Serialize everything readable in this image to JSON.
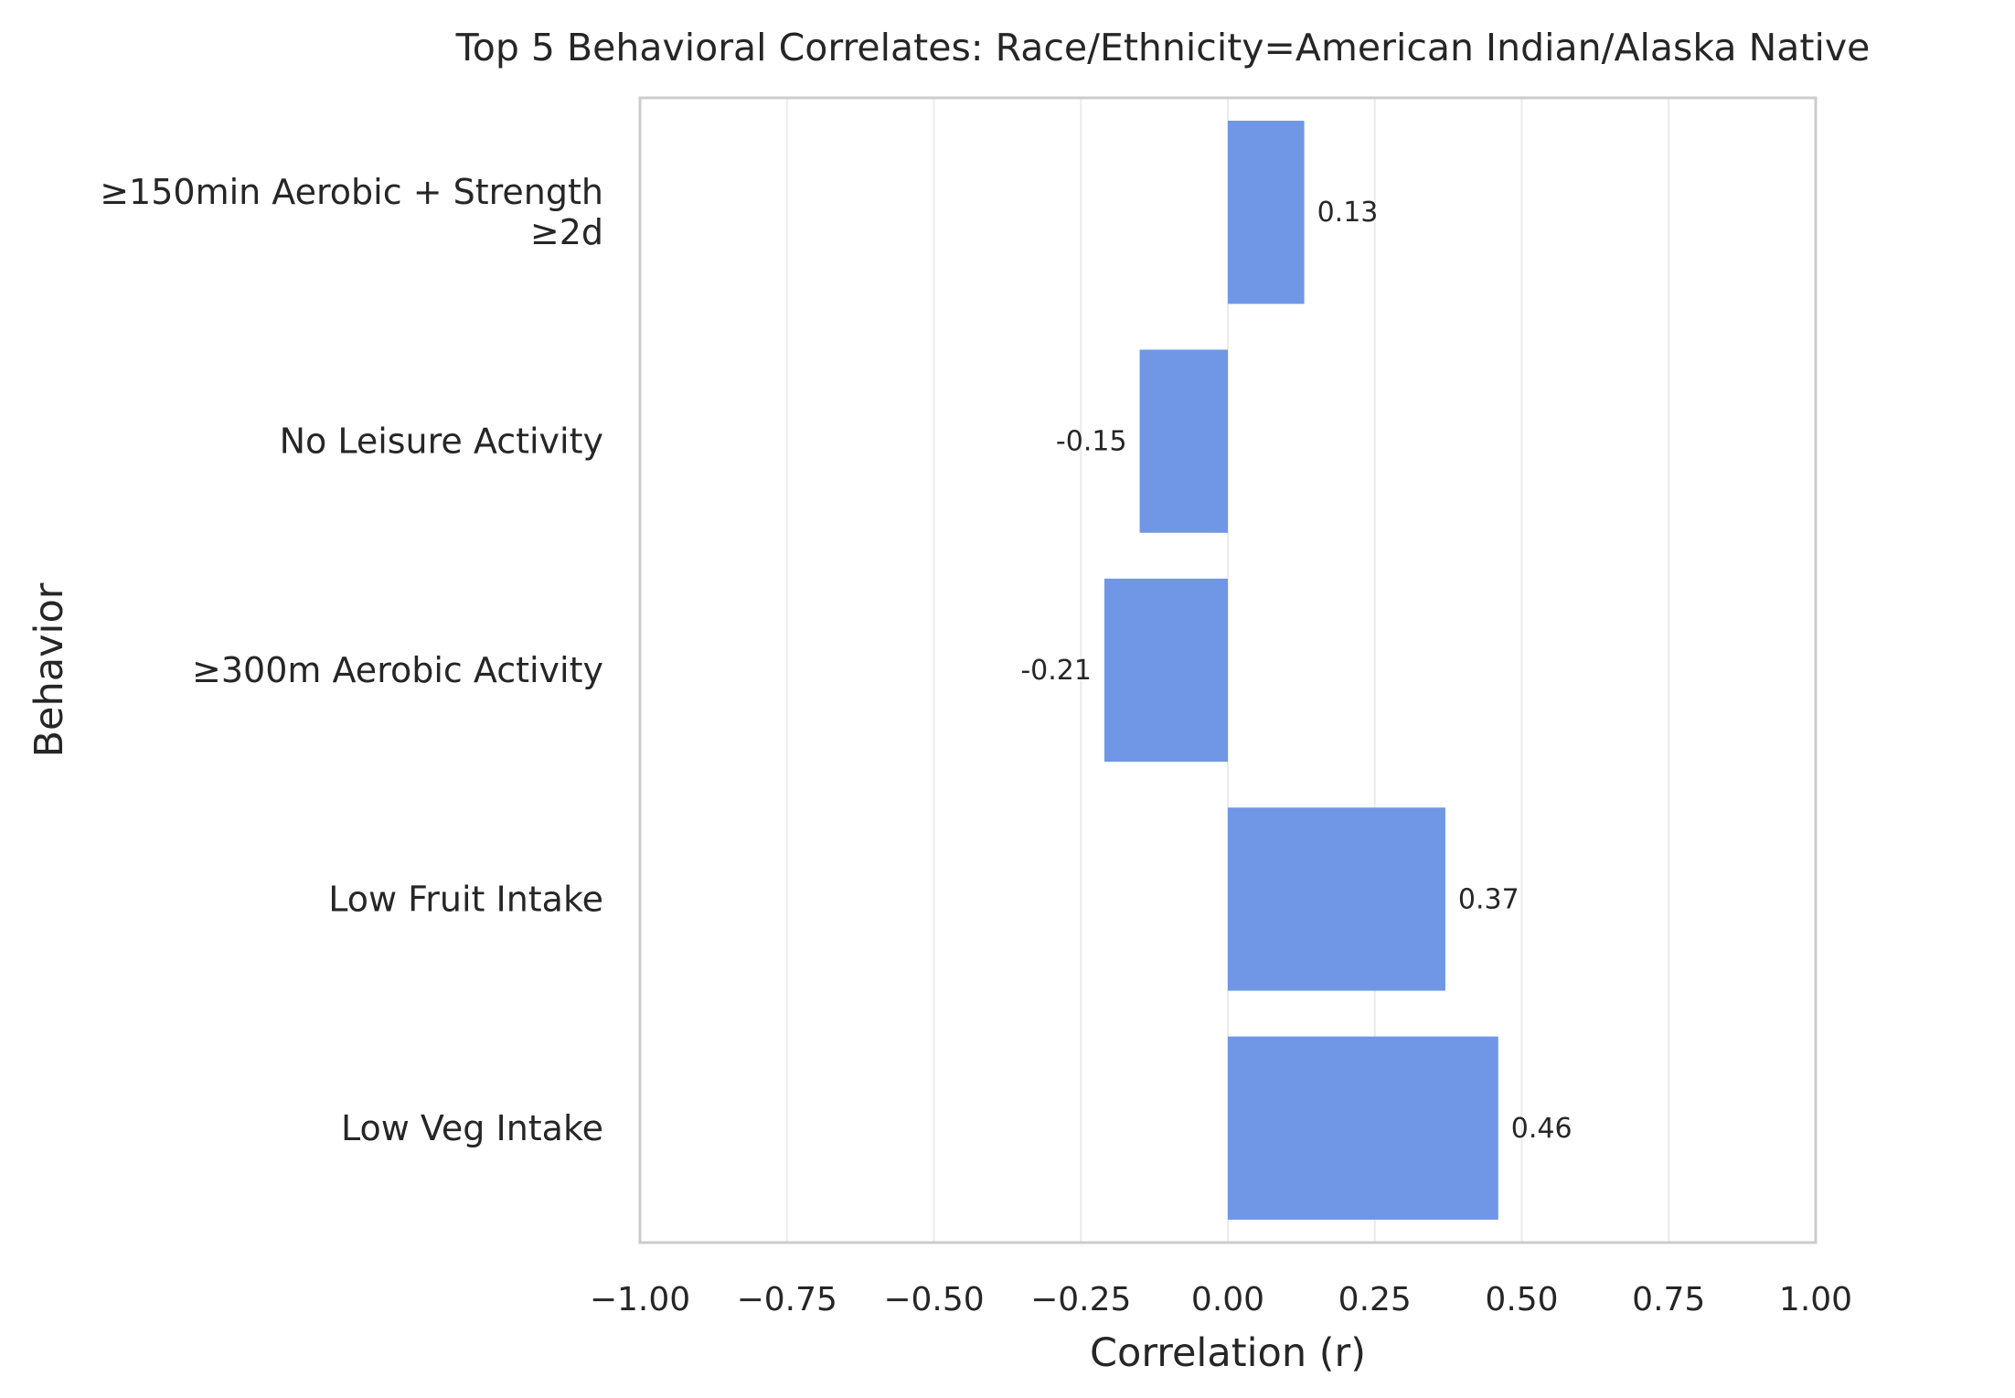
{
  "chart_data": {
    "type": "bar",
    "orientation": "horizontal",
    "title": "Top 5 Behavioral Correlates: Race/Ethnicity=American Indian/Alaska Native",
    "xlabel": "Correlation (r)",
    "ylabel": "Behavior",
    "xlim": [
      -1.0,
      1.0
    ],
    "xticks": [
      -1.0,
      -0.75,
      -0.5,
      -0.25,
      0.0,
      0.25,
      0.5,
      0.75,
      1.0
    ],
    "xtick_labels": [
      "−1.00",
      "−0.75",
      "−0.50",
      "−0.25",
      "0.00",
      "0.25",
      "0.50",
      "0.75",
      "1.00"
    ],
    "categories": [
      [
        "≥150min Aerobic + Strength",
        "≥2d"
      ],
      [
        "No Leisure Activity"
      ],
      [
        "≥300m Aerobic Activity"
      ],
      [
        "Low Fruit Intake"
      ],
      [
        "Low Veg Intake"
      ]
    ],
    "values": [
      0.13,
      -0.15,
      -0.21,
      0.37,
      0.46
    ],
    "value_labels": [
      "0.13",
      "-0.15",
      "-0.21",
      "0.37",
      "0.46"
    ],
    "grid": "vertical",
    "bar_color": "#6f97e6",
    "grid_color": "#ebebeb",
    "frame_color": "#cccccc"
  }
}
